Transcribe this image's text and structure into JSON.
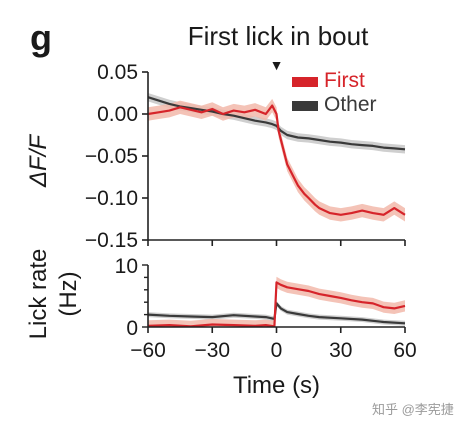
{
  "panel_label": "g",
  "watermark": "知乎 @李宪捷",
  "colors": {
    "first": "#d6242a",
    "first_band": "#f2b9aa",
    "other": "#3a3a3a",
    "other_band": "#c7c7c7",
    "axis": "#222222"
  },
  "chart_data": [
    {
      "type": "line",
      "title": "First lick in bout",
      "event_marker": {
        "x": 0,
        "symbol": "▼"
      },
      "xlabel": "",
      "ylabel": "ΔF/F",
      "xlim": [
        -60,
        60
      ],
      "ylim": [
        -0.15,
        0.05
      ],
      "xticks": [
        -60,
        -30,
        0,
        30,
        60
      ],
      "yticks": [
        0.05,
        0.0,
        -0.05,
        -0.1,
        -0.15
      ],
      "ytick_labels": [
        "0.05",
        "0.00",
        "−0.05",
        "−0.10",
        "−0.15"
      ],
      "legend": {
        "placement": "top-right",
        "entries": [
          "First",
          "Other"
        ]
      },
      "grid": false,
      "series": [
        {
          "name": "First",
          "color": "#d6242a",
          "x": [
            -60,
            -55,
            -50,
            -45,
            -40,
            -35,
            -30,
            -25,
            -20,
            -15,
            -10,
            -5,
            -2,
            0,
            1,
            3,
            5,
            8,
            10,
            13,
            15,
            18,
            20,
            25,
            30,
            35,
            40,
            45,
            50,
            55,
            60
          ],
          "y": [
            0.0,
            0.002,
            0.004,
            0.008,
            0.005,
            0.002,
            0.006,
            0.0,
            0.004,
            0.002,
            0.005,
            0.0,
            0.01,
            0.0,
            -0.02,
            -0.04,
            -0.06,
            -0.075,
            -0.085,
            -0.095,
            -0.1,
            -0.108,
            -0.112,
            -0.118,
            -0.12,
            -0.118,
            -0.115,
            -0.118,
            -0.12,
            -0.112,
            -0.12
          ],
          "band": 0.008
        },
        {
          "name": "Other",
          "color": "#3a3a3a",
          "x": [
            -60,
            -55,
            -50,
            -45,
            -40,
            -35,
            -30,
            -25,
            -20,
            -15,
            -10,
            -5,
            -2,
            0,
            2,
            5,
            10,
            15,
            20,
            25,
            30,
            35,
            40,
            45,
            50,
            55,
            60
          ],
          "y": [
            0.02,
            0.016,
            0.012,
            0.009,
            0.007,
            0.005,
            0.003,
            0.0,
            -0.002,
            -0.005,
            -0.008,
            -0.01,
            -0.012,
            -0.014,
            -0.02,
            -0.025,
            -0.028,
            -0.029,
            -0.031,
            -0.033,
            -0.034,
            -0.036,
            -0.037,
            -0.038,
            -0.04,
            -0.041,
            -0.042
          ],
          "band": 0.005
        }
      ]
    },
    {
      "type": "line",
      "title": "",
      "xlabel": "Time (s)",
      "ylabel": "Lick rate (Hz)",
      "ylabel_lines": [
        "Lick rate",
        "(Hz)"
      ],
      "xlim": [
        -60,
        60
      ],
      "ylim": [
        0,
        10
      ],
      "xticks": [
        -60,
        -30,
        0,
        30,
        60
      ],
      "xtick_labels": [
        "−60",
        "−30",
        "0",
        "30",
        "60"
      ],
      "yticks": [
        0,
        10
      ],
      "ytick_labels": [
        "0",
        "10"
      ],
      "grid": false,
      "series": [
        {
          "name": "First",
          "color": "#d6242a",
          "x": [
            -60,
            -50,
            -40,
            -30,
            -20,
            -10,
            -5,
            -1,
            0,
            2,
            5,
            10,
            15,
            20,
            25,
            30,
            35,
            40,
            45,
            50,
            55,
            60
          ],
          "y": [
            0.2,
            0.3,
            0.1,
            0.4,
            0.3,
            0.2,
            0.3,
            0.1,
            7.2,
            6.8,
            6.4,
            6.1,
            5.8,
            5.3,
            5.0,
            4.7,
            4.3,
            4.0,
            3.8,
            3.2,
            3.0,
            3.4
          ],
          "band": 0.9
        },
        {
          "name": "Other",
          "color": "#3a3a3a",
          "x": [
            -60,
            -50,
            -40,
            -30,
            -20,
            -10,
            -5,
            -1,
            0,
            2,
            5,
            10,
            15,
            20,
            30,
            40,
            50,
            60
          ],
          "y": [
            2.0,
            1.8,
            1.7,
            1.6,
            1.9,
            1.7,
            1.6,
            1.3,
            3.8,
            3.0,
            2.4,
            2.1,
            1.8,
            1.6,
            1.4,
            1.2,
            0.8,
            0.6
          ],
          "band": 0.4
        }
      ]
    }
  ]
}
